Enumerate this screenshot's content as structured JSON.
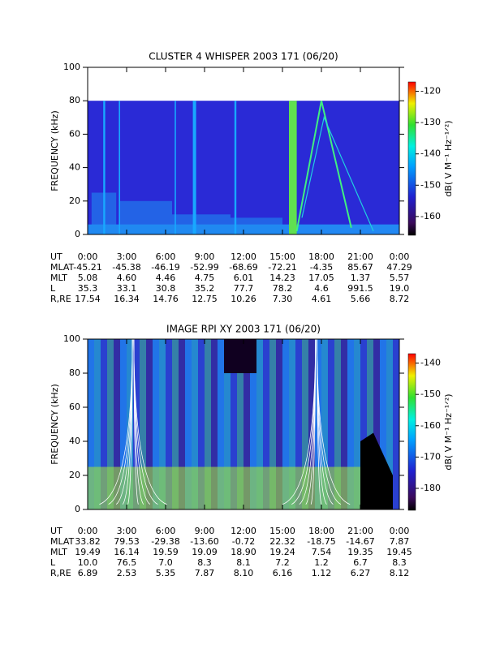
{
  "chart_data": [
    {
      "type": "heatmap",
      "title": "CLUSTER 4 WHISPER 2003 171 (06/20)",
      "ylabel": "FREQUENCY (kHz)",
      "ylim": [
        0,
        100
      ],
      "yticks": [
        0,
        20,
        40,
        60,
        80,
        100
      ],
      "xlim": [
        0,
        24
      ],
      "xticks": [
        {
          "value": 0,
          "label": "0:00"
        },
        {
          "value": 3,
          "label": "3:00"
        },
        {
          "value": 6,
          "label": "6:00"
        },
        {
          "value": 9,
          "label": "9:00"
        },
        {
          "value": 12,
          "label": "12:00"
        },
        {
          "value": 15,
          "label": "15:00"
        },
        {
          "value": 18,
          "label": "18:00"
        },
        {
          "value": 21,
          "label": "21:00"
        },
        {
          "value": 24,
          "label": "0:00"
        }
      ],
      "xtick_row_label": "UT",
      "colorbar_label": "dB( V M⁻¹ Hz⁻¹ᐟ²)",
      "colorbar_lim": [
        -166,
        -117
      ],
      "colorbar_ticks": [
        -160,
        -150,
        -140,
        -130,
        -120
      ],
      "ephemeris": [
        {
          "name": "MLAT",
          "values": [
            "-45.21",
            "-45.38",
            "-46.19",
            "-52.99",
            "-68.69",
            "-72.21",
            "-4.35",
            "85.67",
            "47.29"
          ]
        },
        {
          "name": "MLT",
          "values": [
            "5.08",
            "4.60",
            "4.46",
            "4.75",
            "6.01",
            "14.23",
            "17.05",
            "1.37",
            "5.57"
          ]
        },
        {
          "name": "L",
          "values": [
            "35.3",
            "33.1",
            "30.8",
            "35.2",
            "77.7",
            "78.2",
            "4.6",
            "991.5",
            "19.0"
          ]
        },
        {
          "name": "R,RE",
          "values": [
            "17.54",
            "16.34",
            "14.76",
            "12.75",
            "10.26",
            "7.30",
            "4.61",
            "5.66",
            "8.72"
          ]
        }
      ]
    },
    {
      "type": "heatmap",
      "title": "IMAGE RPI XY 2003 171 (06/20)",
      "ylabel": "FREQUENCY (kHz)",
      "ylim": [
        0,
        100
      ],
      "yticks": [
        0,
        20,
        40,
        60,
        80,
        100
      ],
      "xlim": [
        0,
        24
      ],
      "xticks": [
        {
          "value": 0,
          "label": "0:00"
        },
        {
          "value": 3,
          "label": "3:00"
        },
        {
          "value": 6,
          "label": "6:00"
        },
        {
          "value": 9,
          "label": "9:00"
        },
        {
          "value": 12,
          "label": "12:00"
        },
        {
          "value": 15,
          "label": "15:00"
        },
        {
          "value": 18,
          "label": "18:00"
        },
        {
          "value": 21,
          "label": "21:00"
        },
        {
          "value": 24,
          "label": "0:00"
        }
      ],
      "xtick_row_label": "UT",
      "colorbar_label": "dB( V M⁻¹ Hz⁻¹ᐟ²)",
      "colorbar_lim": [
        -187,
        -137
      ],
      "colorbar_ticks": [
        -180,
        -170,
        -160,
        -150,
        -140
      ],
      "ephemeris": [
        {
          "name": "MLAT",
          "values": [
            "33.82",
            "79.53",
            "-29.38",
            "-13.60",
            "-0.72",
            "22.32",
            "-18.75",
            "-14.67",
            "7.87"
          ]
        },
        {
          "name": "MLT",
          "values": [
            "19.49",
            "16.14",
            "19.59",
            "19.09",
            "18.90",
            "19.24",
            "7.54",
            "19.35",
            "19.45"
          ]
        },
        {
          "name": "L",
          "values": [
            "10.0",
            "76.5",
            "7.0",
            "8.3",
            "8.1",
            "7.2",
            "1.2",
            "6.7",
            "8.3"
          ]
        },
        {
          "name": "R,RE",
          "values": [
            "6.89",
            "2.53",
            "5.35",
            "7.87",
            "8.10",
            "6.16",
            "1.12",
            "6.27",
            "8.12"
          ]
        }
      ]
    }
  ]
}
